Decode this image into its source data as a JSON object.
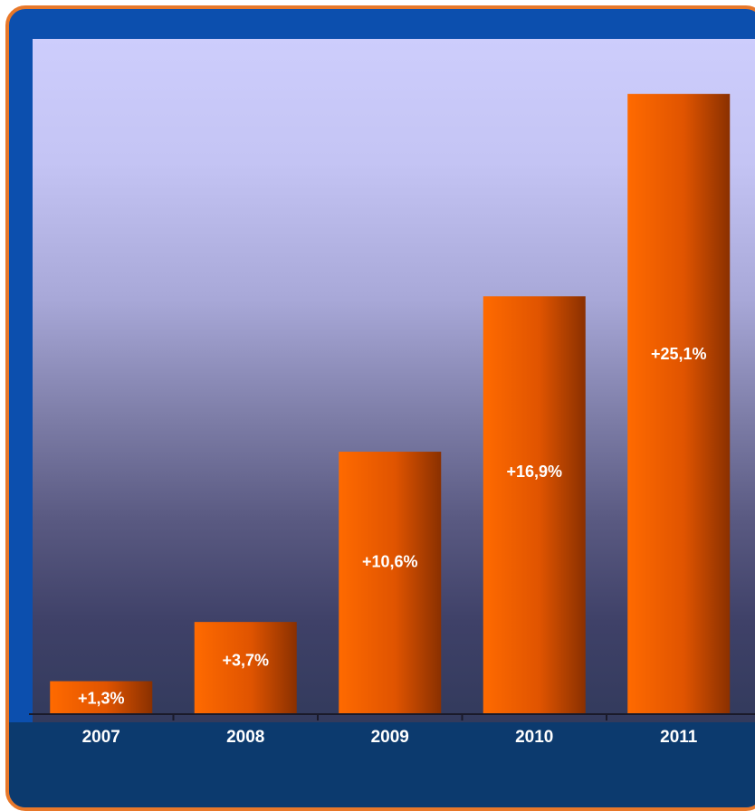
{
  "chart_data": {
    "type": "bar",
    "categories": [
      "2007",
      "2008",
      "2009",
      "2010",
      "2011"
    ],
    "values": [
      1.3,
      3.7,
      10.6,
      16.9,
      25.1
    ],
    "value_labels": [
      "+1,3%",
      "+3,7%",
      "+10,6%",
      "+16,9%",
      "+25,1%"
    ],
    "title": "",
    "xlabel": "",
    "ylabel": "",
    "ylim": [
      0,
      27
    ],
    "grid": false,
    "legend": "none",
    "colors": {
      "bar_light": "#ff6a00",
      "bar_dark": "#8a3000",
      "frame_border": "#e8782a",
      "frame_fill": "#0c4fae",
      "footer": "#0c3a6e"
    }
  }
}
